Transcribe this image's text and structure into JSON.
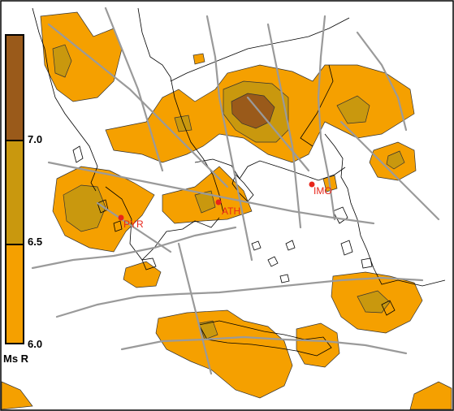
{
  "legend": {
    "title": "Ms R",
    "levels": [
      {
        "value": "7.0",
        "color": "#9a5a1a"
      },
      {
        "value": "6.5",
        "color": "#c9980e"
      },
      {
        "value": "6.0",
        "color": "#f5a000"
      }
    ]
  },
  "cities": [
    {
      "code": "ATH"
    },
    {
      "code": "PYR"
    },
    {
      "code": "IMO"
    }
  ],
  "colors": {
    "zone_low": "#f5a000",
    "zone_mid": "#c9980e",
    "zone_high": "#9a5a1a",
    "faults": "#9a9a9a",
    "city": "#e8251a"
  }
}
